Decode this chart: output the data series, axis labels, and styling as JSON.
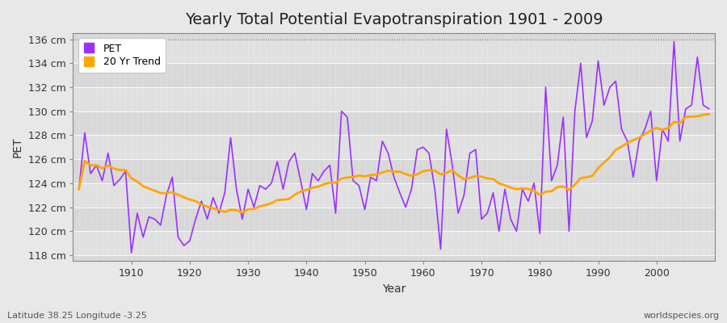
{
  "title": "Yearly Total Potential Evapotranspiration 1901 - 2009",
  "ylabel": "PET",
  "xlabel": "Year",
  "subtitle_left": "Latitude 38.25 Longitude -3.25",
  "subtitle_right": "worldspecies.org",
  "years": [
    1901,
    1902,
    1903,
    1904,
    1905,
    1906,
    1907,
    1908,
    1909,
    1910,
    1911,
    1912,
    1913,
    1914,
    1915,
    1916,
    1917,
    1918,
    1919,
    1920,
    1921,
    1922,
    1923,
    1924,
    1925,
    1926,
    1927,
    1928,
    1929,
    1930,
    1931,
    1932,
    1933,
    1934,
    1935,
    1936,
    1937,
    1938,
    1939,
    1940,
    1941,
    1942,
    1943,
    1944,
    1945,
    1946,
    1947,
    1948,
    1949,
    1950,
    1951,
    1952,
    1953,
    1954,
    1955,
    1956,
    1957,
    1958,
    1959,
    1960,
    1961,
    1962,
    1963,
    1964,
    1965,
    1966,
    1967,
    1968,
    1969,
    1970,
    1971,
    1972,
    1973,
    1974,
    1975,
    1976,
    1977,
    1978,
    1979,
    1980,
    1981,
    1982,
    1983,
    1984,
    1985,
    1986,
    1987,
    1988,
    1989,
    1990,
    1991,
    1992,
    1993,
    1994,
    1995,
    1996,
    1997,
    1998,
    1999,
    2000,
    2001,
    2002,
    2003,
    2004,
    2005,
    2006,
    2007,
    2008,
    2009
  ],
  "pet": [
    123.5,
    128.2,
    124.8,
    125.5,
    124.2,
    126.5,
    123.8,
    124.3,
    125.0,
    118.2,
    121.5,
    119.5,
    121.2,
    121.0,
    120.5,
    123.0,
    124.5,
    119.5,
    118.8,
    119.2,
    121.0,
    122.5,
    121.0,
    122.8,
    121.5,
    123.2,
    127.8,
    123.5,
    121.0,
    123.5,
    122.0,
    123.8,
    123.5,
    124.0,
    125.8,
    123.5,
    125.8,
    126.5,
    124.2,
    121.8,
    124.8,
    124.2,
    125.0,
    125.5,
    121.5,
    130.0,
    129.5,
    124.2,
    123.8,
    121.8,
    124.5,
    124.2,
    127.5,
    126.5,
    124.5,
    123.2,
    122.0,
    123.5,
    126.8,
    127.0,
    126.5,
    123.5,
    118.5,
    128.5,
    125.5,
    121.5,
    123.0,
    126.5,
    126.8,
    121.0,
    121.5,
    123.2,
    120.0,
    123.5,
    121.0,
    120.0,
    123.5,
    122.5,
    124.0,
    119.8,
    132.0,
    124.2,
    125.5,
    129.5,
    120.0,
    130.0,
    134.0,
    127.8,
    129.2,
    134.2,
    130.5,
    132.0,
    132.5,
    128.5,
    127.5,
    124.5,
    127.5,
    128.5,
    130.0,
    124.2,
    128.5,
    127.5,
    135.8,
    127.5,
    130.2,
    130.5,
    134.5,
    130.5,
    130.2
  ],
  "pet_color": "#9B30FF",
  "trend_color": "#FFA500",
  "ylim": [
    117.5,
    136.5
  ],
  "yticks": [
    118,
    120,
    122,
    124,
    126,
    128,
    130,
    132,
    134,
    136
  ],
  "band_colors": [
    "#D8D8D8",
    "#E0E0E0"
  ],
  "grid_color": "#FFFFFF",
  "bg_color": "#E8E8E8",
  "title_fontsize": 14,
  "axis_fontsize": 10,
  "tick_fontsize": 9,
  "legend_fontsize": 9,
  "trend_window": 20
}
